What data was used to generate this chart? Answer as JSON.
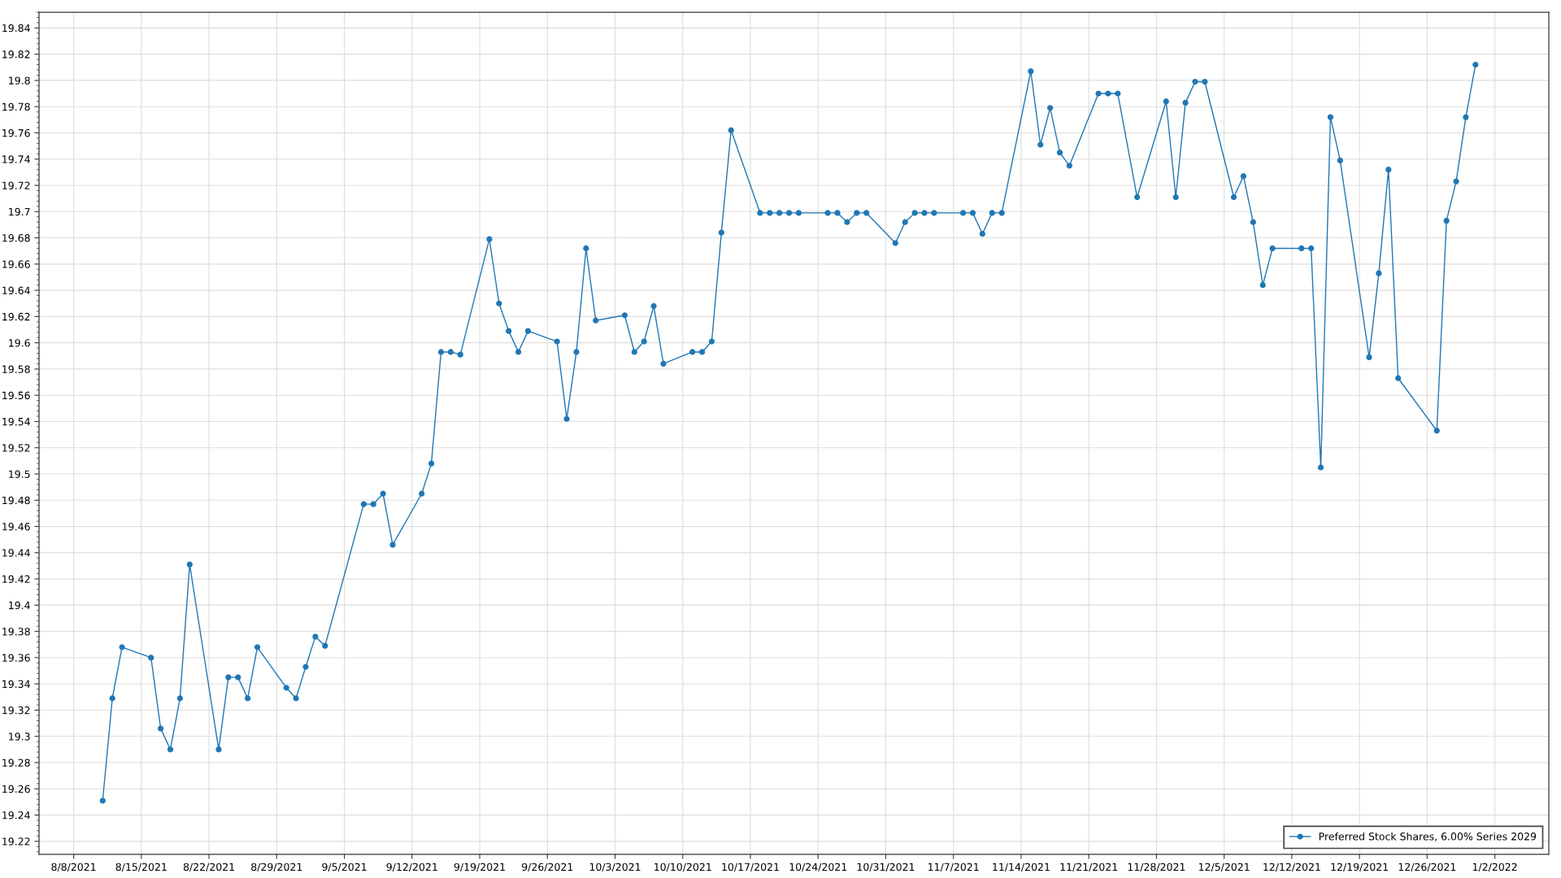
{
  "chart_data": {
    "type": "line",
    "x": [
      "2021-08-11",
      "2021-08-12",
      "2021-08-13",
      "2021-08-16",
      "2021-08-17",
      "2021-08-18",
      "2021-08-19",
      "2021-08-20",
      "2021-08-23",
      "2021-08-24",
      "2021-08-25",
      "2021-08-26",
      "2021-08-27",
      "2021-08-30",
      "2021-08-31",
      "2021-09-01",
      "2021-09-02",
      "2021-09-03",
      "2021-09-07",
      "2021-09-08",
      "2021-09-09",
      "2021-09-10",
      "2021-09-13",
      "2021-09-14",
      "2021-09-15",
      "2021-09-16",
      "2021-09-17",
      "2021-09-20",
      "2021-09-21",
      "2021-09-22",
      "2021-09-23",
      "2021-09-24",
      "2021-09-27",
      "2021-09-28",
      "2021-09-29",
      "2021-09-30",
      "2021-10-01",
      "2021-10-04",
      "2021-10-05",
      "2021-10-06",
      "2021-10-07",
      "2021-10-08",
      "2021-10-11",
      "2021-10-12",
      "2021-10-13",
      "2021-10-14",
      "2021-10-15",
      "2021-10-18",
      "2021-10-19",
      "2021-10-20",
      "2021-10-21",
      "2021-10-22",
      "2021-10-25",
      "2021-10-26",
      "2021-10-27",
      "2021-10-28",
      "2021-10-29",
      "2021-11-01",
      "2021-11-02",
      "2021-11-03",
      "2021-11-04",
      "2021-11-05",
      "2021-11-08",
      "2021-11-09",
      "2021-11-10",
      "2021-11-11",
      "2021-11-12",
      "2021-11-15",
      "2021-11-16",
      "2021-11-17",
      "2021-11-18",
      "2021-11-19",
      "2021-11-22",
      "2021-11-23",
      "2021-11-24",
      "2021-11-26",
      "2021-11-29",
      "2021-11-30",
      "2021-12-01",
      "2021-12-02",
      "2021-12-03",
      "2021-12-06",
      "2021-12-07",
      "2021-12-08",
      "2021-12-09",
      "2021-12-10",
      "2021-12-13",
      "2021-12-14",
      "2021-12-15",
      "2021-12-16",
      "2021-12-17",
      "2021-12-20",
      "2021-12-21",
      "2021-12-22",
      "2021-12-23",
      "2021-12-27",
      "2021-12-28",
      "2021-12-29",
      "2021-12-30",
      "2021-12-31"
    ],
    "series": [
      {
        "name": "Preferred Stock Shares, 6.00% Series 2029",
        "color": "#2077b4",
        "values": [
          19.251,
          19.329,
          19.368,
          19.36,
          19.306,
          19.29,
          19.329,
          19.431,
          19.29,
          19.345,
          19.345,
          19.329,
          19.368,
          19.337,
          19.329,
          19.353,
          19.376,
          19.369,
          19.477,
          19.477,
          19.485,
          19.446,
          19.485,
          19.508,
          19.593,
          19.593,
          19.591,
          19.679,
          19.63,
          19.609,
          19.593,
          19.609,
          19.601,
          19.542,
          19.593,
          19.672,
          19.617,
          19.621,
          19.593,
          19.601,
          19.628,
          19.584,
          19.593,
          19.593,
          19.601,
          19.684,
          19.762,
          19.699,
          19.699,
          19.699,
          19.699,
          19.699,
          19.699,
          19.699,
          19.692,
          19.699,
          19.699,
          19.676,
          19.692,
          19.699,
          19.699,
          19.699,
          19.699,
          19.699,
          19.683,
          19.699,
          19.699,
          19.807,
          19.751,
          19.779,
          19.745,
          19.735,
          19.79,
          19.79,
          19.79,
          19.711,
          19.784,
          19.711,
          19.783,
          19.799,
          19.799,
          19.711,
          19.727,
          19.692,
          19.644,
          19.672,
          19.672,
          19.672,
          19.505,
          19.772,
          19.739,
          19.589,
          19.653,
          19.732,
          19.573,
          19.533,
          19.693,
          19.723,
          19.772,
          19.812
        ]
      }
    ],
    "xlim": [
      "2021-08-04T10:00",
      "2022-01-07T14:00"
    ],
    "ylim": [
      19.21,
      19.852
    ],
    "xticks": [
      {
        "value": "2021-08-08",
        "label": "8/8/2021"
      },
      {
        "value": "2021-08-15",
        "label": "8/15/2021"
      },
      {
        "value": "2021-08-22",
        "label": "8/22/2021"
      },
      {
        "value": "2021-08-29",
        "label": "8/29/2021"
      },
      {
        "value": "2021-09-05",
        "label": "9/5/2021"
      },
      {
        "value": "2021-09-12",
        "label": "9/12/2021"
      },
      {
        "value": "2021-09-19",
        "label": "9/19/2021"
      },
      {
        "value": "2021-09-26",
        "label": "9/26/2021"
      },
      {
        "value": "2021-10-03",
        "label": "10/3/2021"
      },
      {
        "value": "2021-10-10",
        "label": "10/10/2021"
      },
      {
        "value": "2021-10-17",
        "label": "10/17/2021"
      },
      {
        "value": "2021-10-24",
        "label": "10/24/2021"
      },
      {
        "value": "2021-10-31",
        "label": "10/31/2021"
      },
      {
        "value": "2021-11-07",
        "label": "11/7/2021"
      },
      {
        "value": "2021-11-14",
        "label": "11/14/2021"
      },
      {
        "value": "2021-11-21",
        "label": "11/21/2021"
      },
      {
        "value": "2021-11-28",
        "label": "11/28/2021"
      },
      {
        "value": "2021-12-05",
        "label": "12/5/2021"
      },
      {
        "value": "2021-12-12",
        "label": "12/12/2021"
      },
      {
        "value": "2021-12-19",
        "label": "12/19/2021"
      },
      {
        "value": "2021-12-26",
        "label": "12/26/2021"
      },
      {
        "value": "2022-01-02",
        "label": "1/2/2022"
      }
    ],
    "yticks": [
      19.22,
      19.24,
      19.26,
      19.28,
      19.3,
      19.32,
      19.34,
      19.36,
      19.38,
      19.4,
      19.42,
      19.44,
      19.46,
      19.48,
      19.5,
      19.52,
      19.54,
      19.56,
      19.58,
      19.6,
      19.62,
      19.64,
      19.66,
      19.68,
      19.7,
      19.72,
      19.74,
      19.76,
      19.78,
      19.8,
      19.82,
      19.84
    ],
    "grid": true,
    "legend": "bottom right",
    "marker": "circle",
    "line_style": "solid"
  }
}
